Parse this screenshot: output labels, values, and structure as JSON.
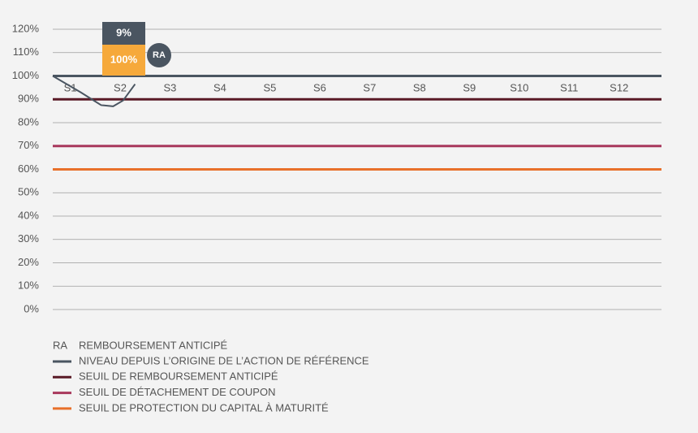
{
  "chart_data": {
    "type": "line",
    "ylim": [
      0,
      120
    ],
    "yticks": [
      {
        "value": 0,
        "label": "0%"
      },
      {
        "value": 10,
        "label": "10%"
      },
      {
        "value": 20,
        "label": "20%"
      },
      {
        "value": 30,
        "label": "30%"
      },
      {
        "value": 40,
        "label": "40%"
      },
      {
        "value": 50,
        "label": "50%"
      },
      {
        "value": 60,
        "label": "60%"
      },
      {
        "value": 70,
        "label": "70%"
      },
      {
        "value": 80,
        "label": "80%"
      },
      {
        "value": 90,
        "label": "90%"
      },
      {
        "value": 100,
        "label": "100%"
      },
      {
        "value": 110,
        "label": "110%"
      },
      {
        "value": 120,
        "label": "120%"
      }
    ],
    "grid": true,
    "xlim": [
      0.65,
      12.85
    ],
    "categories": [
      "S1",
      "S2",
      "S3",
      "S4",
      "S5",
      "S6",
      "S7",
      "S8",
      "S9",
      "S10",
      "S11",
      "S12"
    ],
    "reference_line": {
      "value": 100,
      "color": "#4a5561"
    },
    "series": [
      {
        "name": "NIVEAU DEPUIS L’ORIGINE DE L’ACTION DE RÉFÉRENCE",
        "color": "#4a5561",
        "x": [
          0.65,
          1.21,
          1.62,
          1.86,
          2.06,
          2.3
        ],
        "values": [
          100,
          93,
          87.5,
          87,
          89.5,
          96.5
        ]
      }
    ],
    "thresholds": [
      {
        "name": "SEUIL DE REMBOURSEMENT ANTICIPÉ",
        "color": "#5a1a26",
        "value": 90
      },
      {
        "name": "SEUIL DE DÉTACHEMENT DE COUPON",
        "color": "#a8385c",
        "value": 70
      },
      {
        "name": "SEUIL DE PROTECTION DU CAPITAL À MATURITÉ",
        "color": "#e8702a",
        "value": 60
      }
    ],
    "annotations": [
      {
        "label": "9%",
        "color": "#4a5561"
      },
      {
        "label": "100%",
        "color": "#f6a93b"
      }
    ],
    "marker": {
      "label": "RA",
      "text": "REMBOURSEMENT ANTICIPÉ",
      "color": "#4a5561"
    }
  }
}
